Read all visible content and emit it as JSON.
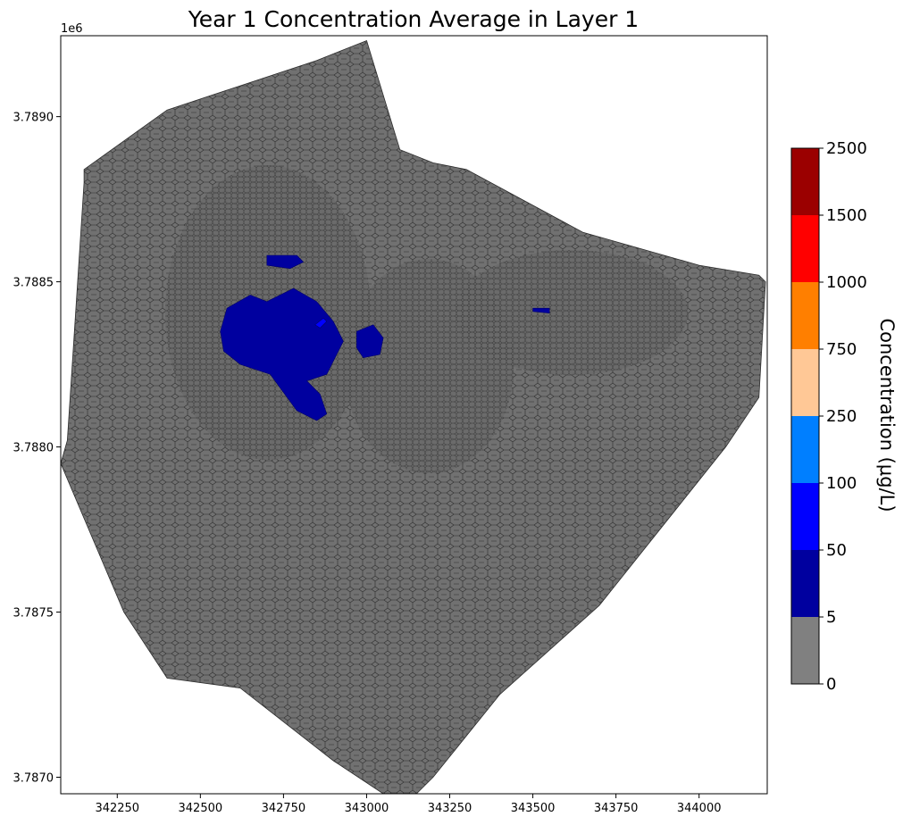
{
  "chart_data": {
    "type": "heatmap",
    "title": "Year 1 Concentration Average in Layer 1",
    "xlabel": "",
    "ylabel": "",
    "y_offset_label": "1e6",
    "xlim": [
      342080,
      344205
    ],
    "ylim": [
      3786950,
      3789245
    ],
    "x_ticks": [
      342250,
      342500,
      342750,
      343000,
      343250,
      343500,
      343750,
      344000
    ],
    "x_tick_labels": [
      "342250",
      "342500",
      "342750",
      "343000",
      "343250",
      "343500",
      "343750",
      "344000"
    ],
    "y_ticks": [
      3787000,
      3787500,
      3788000,
      3788500,
      3789000
    ],
    "y_tick_labels": [
      "3.7870",
      "3.7875",
      "3.7880",
      "3.7885",
      "3.7890"
    ],
    "grid": false,
    "domain_outline": [
      [
        342150,
        3788800
      ],
      [
        342150,
        3788840
      ],
      [
        342400,
        3789020
      ],
      [
        342850,
        3789170
      ],
      [
        343000,
        3789230
      ],
      [
        343100,
        3788900
      ],
      [
        343200,
        3788860
      ],
      [
        343300,
        3788840
      ],
      [
        343650,
        3788650
      ],
      [
        344000,
        3788550
      ],
      [
        344180,
        3788520
      ],
      [
        344200,
        3788500
      ],
      [
        344180,
        3788150
      ],
      [
        344080,
        3788000
      ],
      [
        343700,
        3787520
      ],
      [
        343400,
        3787250
      ],
      [
        343200,
        3787000
      ],
      [
        343150,
        3786950
      ],
      [
        343050,
        3786950
      ],
      [
        342900,
        3787050
      ],
      [
        342620,
        3787270
      ],
      [
        342400,
        3787300
      ],
      [
        342270,
        3787500
      ],
      [
        342080,
        3787950
      ],
      [
        342100,
        3788020
      ]
    ],
    "plume_zones": [
      {
        "class": "5-50",
        "outline": [
          [
            342580,
            3788420
          ],
          [
            342650,
            3788460
          ],
          [
            342700,
            3788440
          ],
          [
            342780,
            3788480
          ],
          [
            342850,
            3788440
          ],
          [
            342900,
            3788380
          ],
          [
            342930,
            3788320
          ],
          [
            342880,
            3788220
          ],
          [
            342820,
            3788200
          ],
          [
            342860,
            3788160
          ],
          [
            342880,
            3788100
          ],
          [
            342850,
            3788080
          ],
          [
            342790,
            3788110
          ],
          [
            342710,
            3788220
          ],
          [
            342620,
            3788250
          ],
          [
            342570,
            3788290
          ],
          [
            342560,
            3788350
          ]
        ]
      },
      {
        "class": "5-50",
        "outline": [
          [
            342700,
            3788580
          ],
          [
            342790,
            3788580
          ],
          [
            342810,
            3788560
          ],
          [
            342770,
            3788540
          ],
          [
            342700,
            3788550
          ]
        ]
      },
      {
        "class": "5-50",
        "outline": [
          [
            342970,
            3788350
          ],
          [
            343020,
            3788370
          ],
          [
            343050,
            3788330
          ],
          [
            343040,
            3788280
          ],
          [
            342990,
            3788270
          ],
          [
            342970,
            3788300
          ]
        ]
      },
      {
        "class": "5-50",
        "outline": [
          [
            343500,
            3788420
          ],
          [
            343550,
            3788420
          ],
          [
            343550,
            3788405
          ],
          [
            343500,
            3788410
          ]
        ]
      },
      {
        "class": "50-100",
        "outline": [
          [
            342845,
            3788370
          ],
          [
            342870,
            3788390
          ],
          [
            342880,
            3788380
          ],
          [
            342860,
            3788360
          ]
        ]
      }
    ],
    "colorbar": {
      "label": "Concentration (μg/L)",
      "bounds": [
        0,
        5,
        50,
        100,
        250,
        750,
        1000,
        1500,
        2500
      ],
      "tick_labels": [
        "0",
        "5",
        "50",
        "100",
        "250",
        "750",
        "1000",
        "1500",
        "2500"
      ],
      "colors": [
        "#808080",
        "#00009f",
        "#0000ff",
        "#007fff",
        "#ffc896",
        "#ff7f00",
        "#ff0000",
        "#9b0000"
      ]
    }
  }
}
